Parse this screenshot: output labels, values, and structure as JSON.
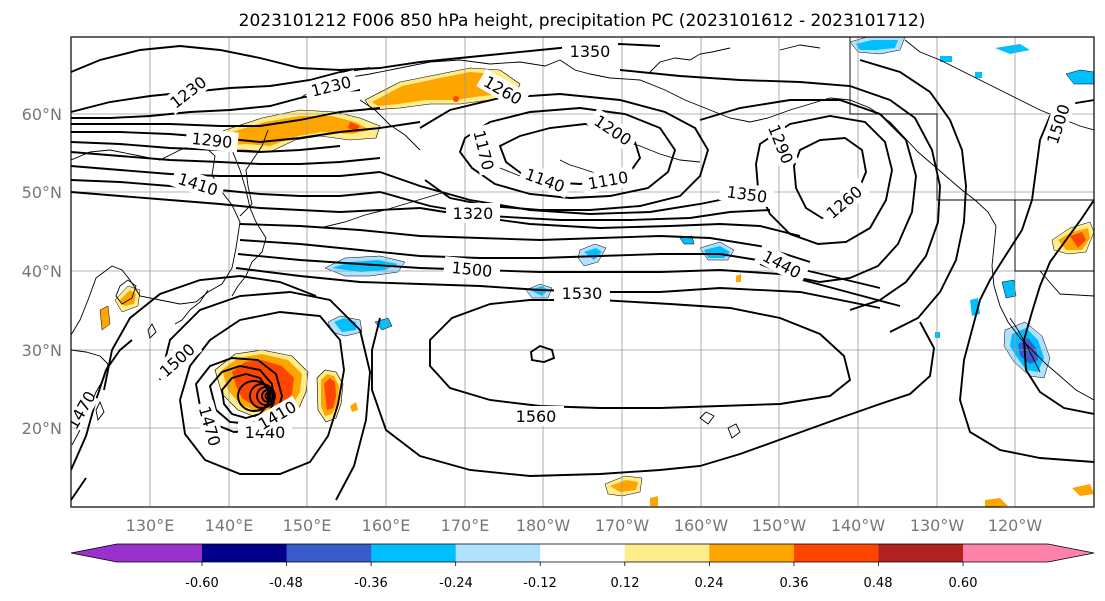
{
  "title": "2023101212 F006 850 hPa height, precipitation PC (2023101612 - 2023101712)",
  "lat_labels": [
    "60°N",
    "50°N",
    "40°N",
    "30°N",
    "20°N"
  ],
  "lon_labels": [
    "130°E",
    "140°E",
    "150°E",
    "160°E",
    "170°E",
    "180°W",
    "170°W",
    "160°W",
    "150°W",
    "140°W",
    "130°W",
    "120°W"
  ],
  "contour_labels": [
    "1350",
    "1230",
    "1230",
    "1260",
    "1290",
    "1200",
    "1170",
    "1140",
    "1110",
    "1290",
    "1410",
    "1320",
    "1350",
    "1260",
    "1500",
    "1440",
    "1530",
    "1500",
    "1560",
    "1470",
    "1440",
    "1410",
    "1500",
    "1470"
  ],
  "colorbar": {
    "colors": [
      "#9932cc",
      "#00008b",
      "#3a5bcc",
      "#00bfff",
      "#b0e2ff",
      "#ffffff",
      "#ffec8b",
      "#ffa500",
      "#ff4500",
      "#b22222",
      "#ff82ab"
    ],
    "tick_labels": [
      "-0.60",
      "-0.48",
      "-0.36",
      "-0.24",
      "-0.12",
      "0.12",
      "0.24",
      "0.36",
      "0.48",
      "0.60"
    ]
  }
}
